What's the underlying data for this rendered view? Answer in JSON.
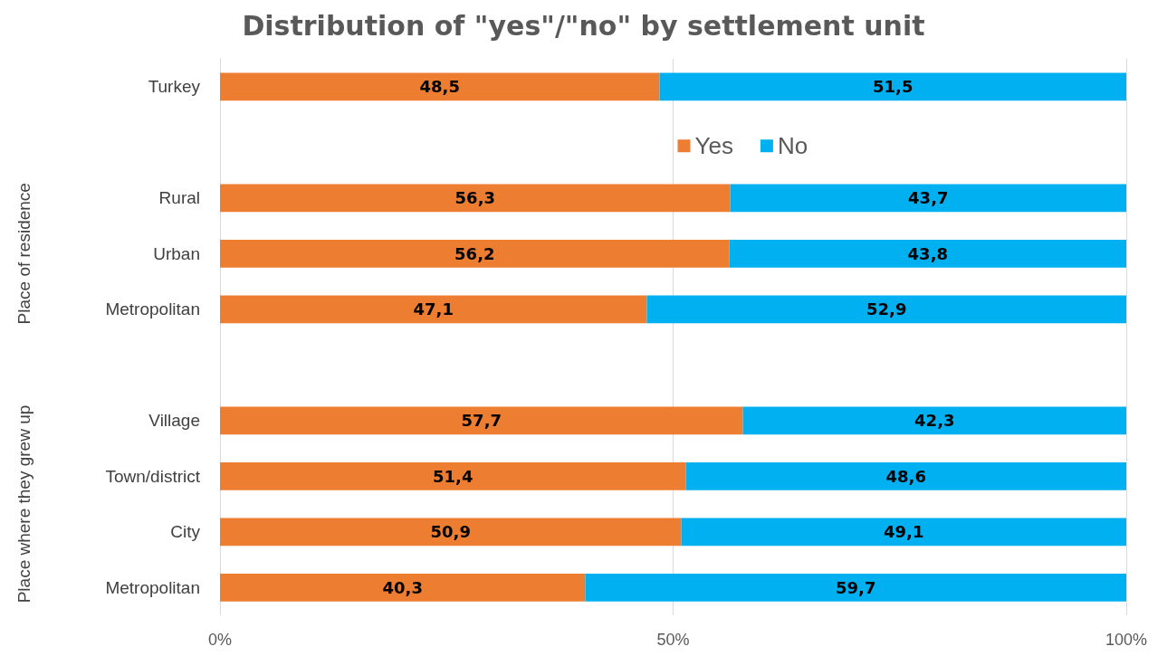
{
  "chart_data": {
    "type": "bar",
    "orientation": "horizontal",
    "stacked": true,
    "title": "Distribution of \"yes\"/\"no\" by settlement unit",
    "categories": [
      "Turkey",
      null,
      "Rural",
      "Urban",
      "Metropolitan",
      null,
      "Village",
      "Town/district",
      "City",
      "Metropolitan"
    ],
    "series": [
      {
        "name": "Yes",
        "color": "#ed7d31",
        "values": [
          48.5,
          null,
          56.3,
          56.2,
          47.1,
          null,
          57.7,
          51.4,
          50.9,
          40.3
        ],
        "value_labels": [
          "48,5",
          null,
          "56,3",
          "56,2",
          "47,1",
          null,
          "57,7",
          "51,4",
          "50,9",
          "40,3"
        ]
      },
      {
        "name": "No",
        "color": "#00b0f0",
        "values": [
          51.5,
          null,
          43.7,
          43.8,
          52.9,
          null,
          42.3,
          48.6,
          49.1,
          59.7
        ],
        "value_labels": [
          "51,5",
          null,
          "43,7",
          "43,8",
          "52,9",
          null,
          "42,3",
          "48,6",
          "49,1",
          "59,7"
        ]
      }
    ],
    "xlim": [
      0,
      100
    ],
    "xticks": [
      {
        "value": 0,
        "label": "0%"
      },
      {
        "value": 50,
        "label": "50%"
      },
      {
        "value": 100,
        "label": "100%"
      }
    ],
    "grid": "x",
    "legend": "top",
    "annotations": [
      "Place of residence",
      "Place where they grew up"
    ]
  }
}
